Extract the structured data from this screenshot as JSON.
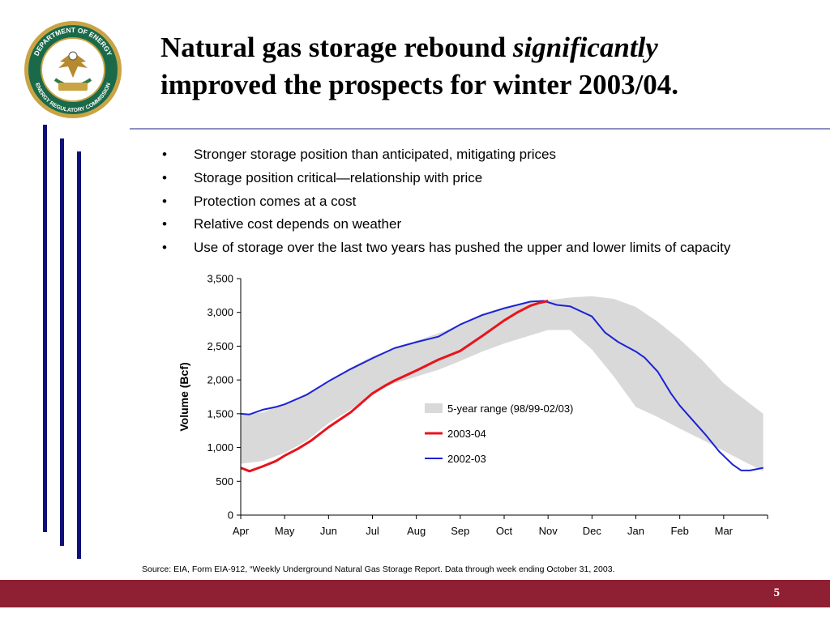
{
  "slide": {
    "title_part1": "Natural gas storage rebound ",
    "title_emph": "significantly",
    "title_part2": "improved the prospects for winter 2003/04.",
    "bullets": [
      "Stronger storage position than anticipated, mitigating prices",
      "Storage position critical—relationship with price",
      "Protection comes at a cost",
      "Relative cost depends on weather",
      "Use of storage over the last two years has pushed the upper and lower limits of capacity"
    ],
    "bullet_symbol": "•",
    "source": "Source: EIA, Form EIA-912, “Weekly Underground Natural Gas Storage Report.  Data through week ending October 31, 2003.",
    "page_number": "5"
  },
  "logo": {
    "icon": "doe-ferc-seal",
    "ring_text_top": "DEPARTMENT OF ENERGY",
    "ring_text_bottom": "ENERGY REGULATORY COMMISSION"
  },
  "colors": {
    "accent_bar": "#10107a",
    "footer": "#8f1f33",
    "rule": "#8b8fbf",
    "band": "#d9d9d9",
    "series_2003": "#e8141c",
    "series_2002": "#1c22d6"
  },
  "chart_data": {
    "type": "area",
    "ylabel": "Volume (Bcf)",
    "xlabel": "",
    "ylim": [
      0,
      3500
    ],
    "yticks": [
      0,
      500,
      1000,
      1500,
      2000,
      2500,
      3000,
      3500
    ],
    "ytick_labels": [
      "0",
      "500",
      "1,000",
      "1,500",
      "2,000",
      "2,500",
      "3,000",
      "3,500"
    ],
    "categories": [
      "Apr",
      "May",
      "Jun",
      "Jul",
      "Aug",
      "Sep",
      "Oct",
      "Nov",
      "Dec",
      "Jan",
      "Feb",
      "Mar"
    ],
    "grid": false,
    "legend_position": "center-right",
    "band": {
      "name": "5-year range (98/99-02/03)",
      "x": [
        0,
        0.5,
        1,
        1.5,
        2,
        2.5,
        3,
        3.5,
        4,
        4.5,
        5,
        5.5,
        6,
        6.5,
        7,
        7.5,
        8,
        8.5,
        9,
        9.5,
        10,
        10.5,
        11,
        11.5,
        11.9
      ],
      "upper": [
        1480,
        1520,
        1650,
        1800,
        1990,
        2180,
        2350,
        2480,
        2580,
        2690,
        2820,
        2980,
        3080,
        3150,
        3180,
        3220,
        3240,
        3200,
        3080,
        2860,
        2600,
        2300,
        1950,
        1700,
        1500
      ],
      "lower": [
        760,
        800,
        920,
        1100,
        1360,
        1560,
        1800,
        1950,
        2050,
        2150,
        2280,
        2420,
        2540,
        2640,
        2740,
        2740,
        2450,
        2050,
        1600,
        1450,
        1280,
        1120,
        950,
        780,
        650
      ]
    },
    "series": [
      {
        "name": "2003-04",
        "x": [
          0,
          0.2,
          0.5,
          0.8,
          1,
          1.3,
          1.6,
          2,
          2.5,
          3,
          3.3,
          3.5,
          4,
          4.5,
          5,
          5.5,
          6,
          6.3,
          6.6,
          6.8,
          7
        ],
        "values": [
          700,
          650,
          720,
          800,
          880,
          980,
          1100,
          1300,
          1520,
          1800,
          1920,
          1990,
          2140,
          2300,
          2430,
          2650,
          2880,
          3000,
          3100,
          3140,
          3170
        ]
      },
      {
        "name": "2002-03",
        "x": [
          0,
          0.2,
          0.5,
          0.8,
          1,
          1.5,
          2,
          2.5,
          3,
          3.5,
          4,
          4.5,
          5,
          5.5,
          6,
          6.3,
          6.6,
          6.9,
          7.2,
          7.5,
          8,
          8.3,
          8.6,
          9,
          9.2,
          9.5,
          9.8,
          10,
          10.3,
          10.6,
          10.9,
          11.2,
          11.4,
          11.6,
          11.9
        ],
        "values": [
          1500,
          1490,
          1560,
          1600,
          1640,
          1780,
          1980,
          2160,
          2320,
          2470,
          2560,
          2640,
          2820,
          2960,
          3060,
          3110,
          3160,
          3170,
          3110,
          3090,
          2940,
          2700,
          2560,
          2420,
          2330,
          2120,
          1800,
          1620,
          1400,
          1180,
          940,
          750,
          660,
          660,
          700
        ]
      }
    ]
  }
}
